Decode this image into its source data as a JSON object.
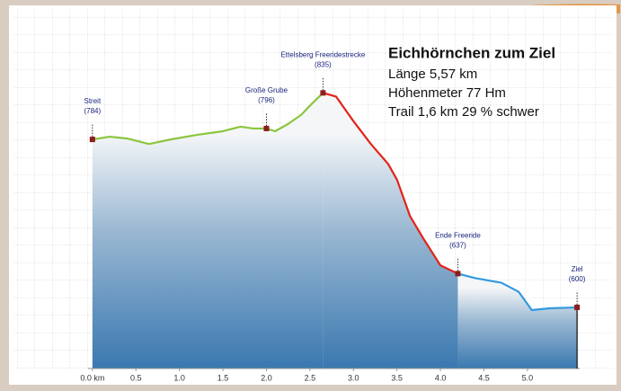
{
  "chart_data": {
    "type": "line",
    "title": "Eichhörnchen zum Ziel",
    "subtitle": [
      "Länge 5,57 km",
      "Höhenmeter 77 Hm",
      "Trail 1,6 km 29 % schwer"
    ],
    "x": [
      0,
      0.2,
      0.4,
      0.65,
      0.9,
      1.2,
      1.5,
      1.7,
      1.85,
      2.0,
      2.1,
      2.25,
      2.4,
      2.5,
      2.65,
      2.8,
      3.0,
      3.2,
      3.4,
      3.5,
      3.65,
      3.8,
      4.0,
      4.2,
      4.4,
      4.7,
      4.9,
      5.05,
      5.25,
      5.57
    ],
    "series": [
      {
        "color": "#8cc63f",
        "values": [
          784,
          787,
          785,
          779,
          784,
          789,
          793,
          798,
          796,
          796,
          793,
          801,
          811,
          821,
          835,
          null,
          null,
          null,
          null,
          null,
          null,
          null,
          null,
          null,
          null,
          null,
          null,
          null,
          null,
          null
        ]
      },
      {
        "color": "#e2231a",
        "values": [
          null,
          null,
          null,
          null,
          null,
          null,
          null,
          null,
          null,
          null,
          null,
          null,
          null,
          null,
          835,
          831,
          804,
          779,
          757,
          740,
          700,
          676,
          646,
          637,
          null,
          null,
          null,
          null,
          null,
          null
        ]
      },
      {
        "color": "#3399dd",
        "values": [
          null,
          null,
          null,
          null,
          null,
          null,
          null,
          null,
          null,
          null,
          null,
          null,
          null,
          null,
          null,
          null,
          null,
          null,
          null,
          null,
          null,
          null,
          null,
          637,
          632,
          627,
          617,
          597,
          599,
          600
        ]
      }
    ],
    "markers": [
      {
        "name": "Streit",
        "x": 0,
        "y": 784,
        "label": "(784)"
      },
      {
        "name": "Große Grube",
        "x": 2.0,
        "y": 796,
        "label": "(796)"
      },
      {
        "name": "Ettelsberg Freeridestrecke",
        "x": 2.65,
        "y": 835,
        "label": "(835)"
      },
      {
        "name": "Ende Freeride",
        "x": 4.2,
        "y": 637,
        "label": "(637)"
      },
      {
        "name": "Ziel",
        "x": 5.57,
        "y": 600,
        "label": "(600)"
      }
    ],
    "xlim": [
      -0.05,
      5.6
    ],
    "ylim": [
      533,
      922
    ],
    "xticks": [
      {
        "value": 0,
        "label": "0.0 km"
      },
      0.5,
      {
        "value": 1,
        "label": "1.0"
      },
      1.5,
      {
        "value": 2,
        "label": "2.0"
      },
      2.5,
      {
        "value": 3,
        "label": "3.0"
      },
      3.5,
      {
        "value": 4,
        "label": "4.0"
      },
      4.5,
      {
        "value": 5,
        "label": "5.0"
      }
    ]
  }
}
